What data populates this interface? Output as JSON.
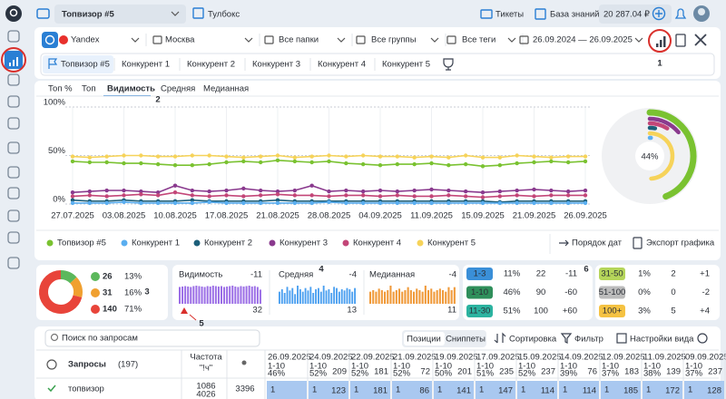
{
  "topbar": {
    "project": "Топвизор #5",
    "toolbox": "Тулбокс",
    "tickets": "Тикеты",
    "knowledge": "База знаний",
    "balance": "20 287.04 ₽"
  },
  "filters": [
    "Yandex",
    "Москва",
    "Все папки",
    "Все группы",
    "Все теги",
    "26.09.2024 — 26.09.2025"
  ],
  "project_tabs": [
    "Топвизор #5",
    "Конкурент 1",
    "Конкурент 2",
    "Конкурент 3",
    "Конкурент 4",
    "Конкурент 5"
  ],
  "metric_tabs": [
    "Топ %",
    "Топ",
    "Видимость",
    "Средняя",
    "Медианная"
  ],
  "chart_data": {
    "type": "line",
    "categories": [
      "27.07.2025",
      null,
      null,
      "03.08.2025",
      null,
      null,
      "10.08.2025",
      null,
      null,
      "17.08.2025",
      null,
      null,
      "21.08.2025",
      null,
      null,
      "28.08.2025",
      null,
      null,
      "04.09.2025",
      null,
      null,
      "11.09.2025",
      null,
      null,
      "15.09.2025",
      null,
      null,
      "21.09.2025",
      null,
      null,
      "26.09.2025"
    ],
    "ylim": [
      0,
      100
    ],
    "yticks": [
      {
        "value": 0,
        "label": "0%"
      },
      {
        "value": 50,
        "label": "50%"
      },
      {
        "value": 100,
        "label": "100%"
      }
    ],
    "grid": true,
    "series": [
      {
        "name": "Топвизор #5",
        "color": "#7ac231",
        "values": [
          44,
          43,
          43,
          42,
          42,
          41,
          40,
          40,
          41,
          43,
          44,
          43,
          45,
          44,
          43,
          44,
          42,
          41,
          40,
          41,
          41,
          42,
          40,
          41,
          39,
          40,
          42,
          43,
          44,
          43,
          44
        ]
      },
      {
        "name": "Конкурент 1",
        "color": "#5aaef0",
        "values": [
          1,
          1,
          1,
          2,
          1,
          1,
          1,
          1,
          2,
          1,
          1,
          1,
          1,
          1,
          1,
          2,
          1,
          1,
          1,
          1,
          1,
          1,
          1,
          1,
          1,
          1,
          1,
          1,
          1,
          1,
          1
        ]
      },
      {
        "name": "Конкурент 2",
        "color": "#1d5f7a",
        "values": [
          4,
          3,
          3,
          4,
          3,
          3,
          3,
          4,
          3,
          3,
          3,
          3,
          4,
          3,
          3,
          3,
          3,
          3,
          3,
          3,
          3,
          3,
          3,
          3,
          3,
          2,
          3,
          3,
          3,
          3,
          3
        ]
      },
      {
        "name": "Конкурент 3",
        "color": "#8a3a8e",
        "values": [
          12,
          13,
          14,
          14,
          13,
          12,
          19,
          14,
          13,
          14,
          16,
          14,
          13,
          14,
          19,
          13,
          14,
          13,
          14,
          13,
          14,
          15,
          14,
          13,
          12,
          13,
          14,
          15,
          14,
          13,
          14
        ]
      },
      {
        "name": "Конкурент 4",
        "color": "#c34678",
        "values": [
          8,
          9,
          8,
          9,
          10,
          9,
          12,
          9,
          8,
          9,
          8,
          9,
          10,
          9,
          9,
          8,
          9,
          9,
          8,
          9,
          8,
          8,
          9,
          8,
          7,
          8,
          9,
          8,
          9,
          9,
          9
        ]
      },
      {
        "name": "Конкурент 5",
        "color": "#f6d35a",
        "values": [
          49,
          48,
          49,
          50,
          50,
          49,
          49,
          50,
          50,
          49,
          48,
          49,
          50,
          48,
          49,
          50,
          49,
          50,
          49,
          49,
          48,
          49,
          48,
          50,
          48,
          48,
          50,
          49,
          48,
          49,
          49
        ]
      }
    ],
    "current_label": "44%"
  },
  "chart_actions": [
    "Порядок дат",
    "Экспорт графика"
  ],
  "annotations": [
    "1",
    "2",
    "3",
    "4",
    "5",
    "6"
  ],
  "summary": {
    "groups": [
      {
        "count": 26,
        "share": 13,
        "share_label": "13%",
        "color": "#5cb85c"
      },
      {
        "count": 31,
        "share": 16,
        "share_label": "16%",
        "color": "#f0a030"
      },
      {
        "count": 140,
        "share": 71,
        "share_label": "71%",
        "color": "#e8443a"
      }
    ],
    "metrics": [
      {
        "label": "Видимость",
        "change": -11,
        "current": 32,
        "color": "#9b6ee6",
        "bars": [
          38,
          39,
          40,
          39,
          38,
          40,
          41,
          40,
          39,
          38,
          40,
          39,
          41,
          40,
          39,
          40,
          38,
          39,
          40,
          41,
          39,
          38,
          40,
          39,
          40,
          41,
          39,
          40,
          38,
          32
        ]
      },
      {
        "label": "Средняя",
        "change": -4,
        "current": 13,
        "color": "#4a9ff0",
        "bars": [
          10,
          12,
          9,
          14,
          11,
          13,
          8,
          15,
          12,
          10,
          13,
          11,
          14,
          9,
          12,
          13,
          10,
          15,
          11,
          12,
          9,
          14,
          13,
          10,
          12,
          11,
          13,
          12,
          10,
          13
        ]
      },
      {
        "label": "Медианная",
        "change": -4,
        "current": 11,
        "color": "#f09a3a",
        "bars": [
          8,
          9,
          8,
          10,
          9,
          8,
          9,
          12,
          8,
          9,
          10,
          8,
          9,
          11,
          9,
          8,
          10,
          9,
          8,
          12,
          9,
          10,
          8,
          9,
          10,
          9,
          8,
          11,
          9,
          11
        ]
      }
    ],
    "ranges_left": [
      {
        "range": "1-3",
        "share": "11%",
        "count": 22,
        "change": -11,
        "color": "#3a8fd8"
      },
      {
        "range": "1-10",
        "share": "46%",
        "count": 90,
        "change": -60,
        "color": "#2f8f5b"
      },
      {
        "range": "11-30",
        "share": "51%",
        "count": 100,
        "change": "+60",
        "color": "#2bb3a0"
      }
    ],
    "ranges_right": [
      {
        "range": "31-50",
        "share": "1%",
        "count": 2,
        "change": "+1",
        "color": "#b5d55a"
      },
      {
        "range": "51-100",
        "share": "0%",
        "count": 0,
        "change": -2,
        "color": "#bcbcbc"
      },
      {
        "range": "100+",
        "share": "3%",
        "count": 5,
        "change": "+4",
        "color": "#f5c242"
      }
    ]
  },
  "toolbar": {
    "search": "Поиск по запросам",
    "positions": "Позиции",
    "snippets": "Сниппеты",
    "sort": "Сортировка",
    "filter": "Фильтр",
    "view": "Настройки вида"
  },
  "table": {
    "query_header": "Запросы",
    "query_count": "(197)",
    "freq_header": "Частота",
    "freq_mode": "\"!ч\"",
    "columns": [
      {
        "date": "26.09.2025",
        "range": "1-10",
        "share": "46%"
      },
      {
        "date": "24.09.2025",
        "range": "1-10",
        "share": "52%",
        "count": 209
      },
      {
        "date": "22.09.2025",
        "range": "1-10",
        "share": "52%",
        "count": 181
      },
      {
        "date": "21.09.2025",
        "range": "1-10",
        "share": "52%",
        "count": 72
      },
      {
        "date": "19.09.2025",
        "range": "1-10",
        "share": "50%",
        "count": 201
      },
      {
        "date": "17.09.2025",
        "range": "1-10",
        "share": "51%",
        "count": 235
      },
      {
        "date": "15.09.2025",
        "range": "1-10",
        "share": "52%",
        "count": 237
      },
      {
        "date": "14.09.2025",
        "range": "1-10",
        "share": "39%",
        "count": 76
      },
      {
        "date": "12.09.2025",
        "range": "1-10",
        "share": "37%",
        "count": 183
      },
      {
        "date": "11.09.2025",
        "range": "1-10",
        "share": "38%",
        "count": 139
      },
      {
        "date": "09.09.2025",
        "range": "1-10",
        "share": "37%",
        "count": 237
      }
    ],
    "rows": [
      {
        "query": "топвизор",
        "freq": 1086,
        "freq_exact": 4026,
        "volume": 3396,
        "cells": [
          {
            "pos": 1
          },
          {
            "pos": 1,
            "count": 123
          },
          {
            "pos": 1,
            "count": 181
          },
          {
            "pos": 1,
            "count": 86
          },
          {
            "pos": 1,
            "count": 141
          },
          {
            "pos": 1,
            "count": 147
          },
          {
            "pos": 1,
            "count": 114
          },
          {
            "pos": 1,
            "count": 114
          },
          {
            "pos": 1,
            "count": 185
          },
          {
            "pos": 1,
            "count": 172
          },
          {
            "pos": 1,
            "count": 128
          }
        ]
      }
    ]
  }
}
